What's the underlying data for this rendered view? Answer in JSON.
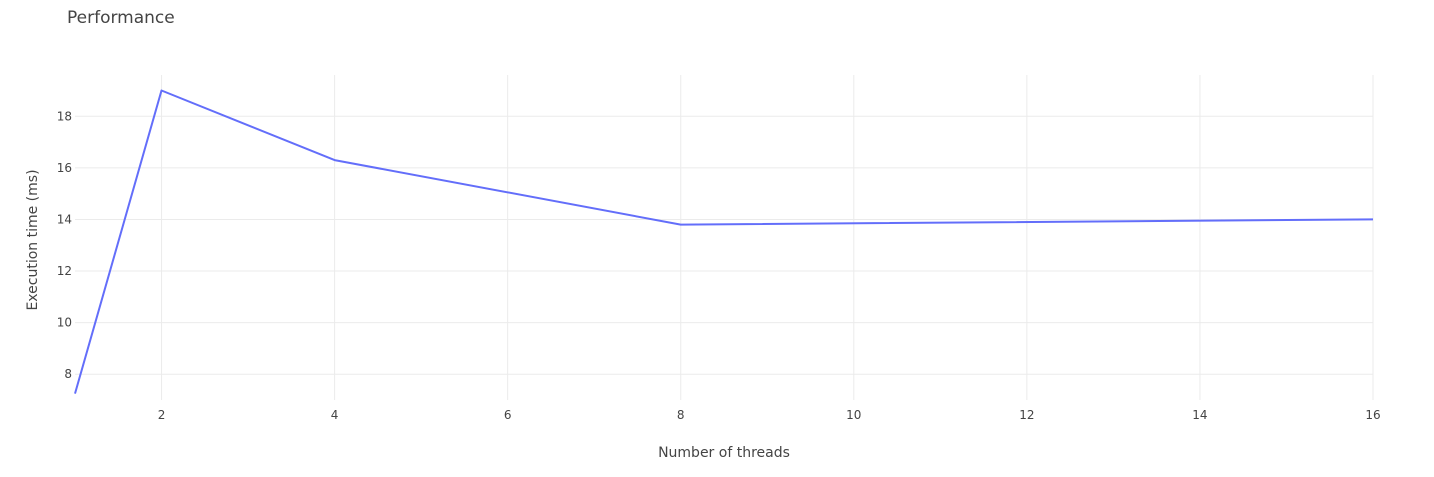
{
  "chart_data": {
    "type": "line",
    "title": "Performance",
    "xlabel": "Number of threads",
    "ylabel": "Execution time (ms)",
    "xlim": [
      1,
      16
    ],
    "ylim": [
      7,
      19.6
    ],
    "xticks": [
      2,
      4,
      6,
      8,
      10,
      12,
      14,
      16
    ],
    "yticks": [
      8,
      10,
      12,
      14,
      16,
      18
    ],
    "grid": true,
    "legend": "none",
    "series": [
      {
        "color": "#636efa",
        "x": [
          1,
          2,
          4,
          8,
          16
        ],
        "y": [
          7.25,
          19.0,
          16.3,
          13.8,
          14.0
        ]
      }
    ]
  }
}
